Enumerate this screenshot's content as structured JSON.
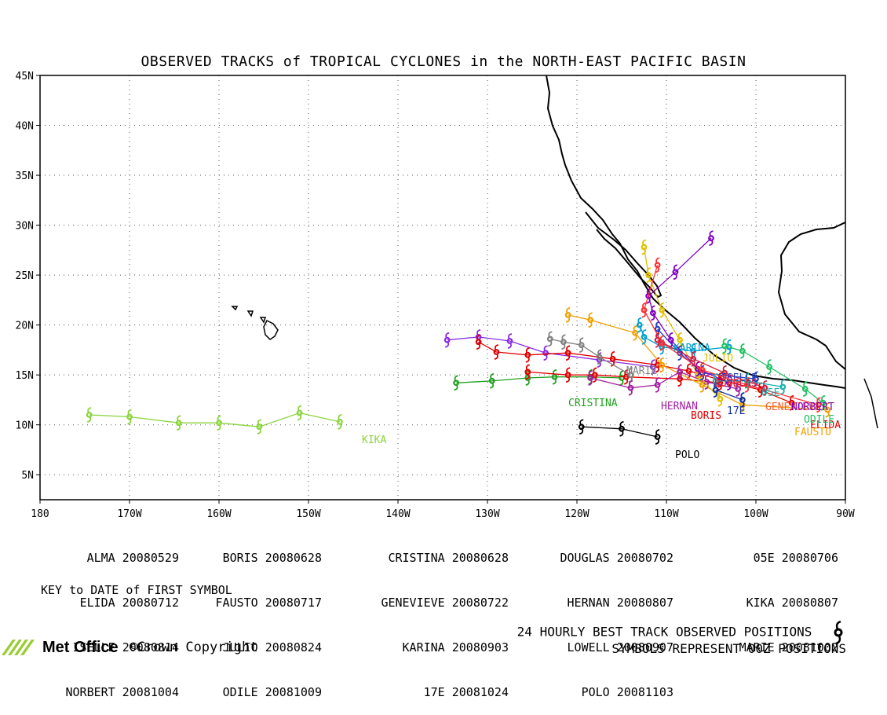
{
  "title": "OBSERVED TRACKS of TROPICAL CYCLONES in the NORTH-EAST PACIFIC BASIN",
  "axes": {
    "lon_ticks": [
      "180",
      "170W",
      "160W",
      "150W",
      "140W",
      "130W",
      "120W",
      "110W",
      "100W",
      "90W"
    ],
    "lat_ticks": [
      "5N",
      "10N",
      "15N",
      "20N",
      "25N",
      "30N",
      "35N",
      "40N",
      "45N"
    ]
  },
  "legend": {
    "col1": [
      [
        "ALMA",
        "20080529"
      ],
      [
        "ELIDA",
        "20080712"
      ],
      [
        "ISELLE",
        "20080814"
      ],
      [
        "NORBERT",
        "20081004"
      ]
    ],
    "col2": [
      [
        "BORIS",
        "20080628"
      ],
      [
        "FAUSTO",
        "20080717"
      ],
      [
        "JULIO",
        "20080824"
      ],
      [
        "ODILE",
        "20081009"
      ]
    ],
    "col3": [
      [
        "CRISTINA",
        "20080628"
      ],
      [
        "GENEVIEVE",
        "20080722"
      ],
      [
        "KARINA",
        "20080903"
      ],
      [
        "17E",
        "20081024"
      ]
    ],
    "col4": [
      [
        "DOUGLAS",
        "20080702"
      ],
      [
        "HERNAN",
        "20080807"
      ],
      [
        "LOWELL",
        "20080907"
      ],
      [
        "POLO",
        "20081103"
      ]
    ],
    "col5": [
      [
        "05E",
        "20080706"
      ],
      [
        "KIKA",
        "20080807"
      ],
      [
        "MARIE",
        "20081002"
      ]
    ]
  },
  "key_note": "KEY to DATE of FIRST SYMBOL",
  "footer": {
    "line1": "24 HOURLY BEST TRACK OBSERVED POSITIONS",
    "line2": "SYMBOLS REPRESENT 00Z POSITIONS",
    "brand": "Met Office",
    "copyright": "©Crown Copyright"
  },
  "chart_data": {
    "type": "map",
    "lon_range": [
      -180,
      -90
    ],
    "lat_range": [
      2.5,
      45
    ],
    "grid": "dotted",
    "storms": [
      {
        "name": "KIKA",
        "color": "#8ad43c",
        "points": [
          [
            -174.5,
            11
          ],
          [
            -170,
            10.8
          ],
          [
            -164.5,
            10.2
          ],
          [
            -160,
            10.2
          ],
          [
            -155.5,
            9.8
          ],
          [
            -151,
            11.2
          ],
          [
            -146.5,
            10.3
          ]
        ]
      },
      {
        "name": "POLO",
        "color": "#000000",
        "points": [
          [
            -119.5,
            9.8
          ],
          [
            -115,
            9.6
          ],
          [
            -111,
            8.8
          ]
        ]
      },
      {
        "name": "CRISTINA",
        "color": "#20a020",
        "points": [
          [
            -133.5,
            14.2
          ],
          [
            -129.5,
            14.4
          ],
          [
            -125.5,
            14.7
          ],
          [
            -122.5,
            14.8
          ],
          [
            -118.5,
            14.8
          ],
          [
            -115,
            14.7
          ]
        ]
      },
      {
        "name": "GENEVIEVE",
        "color": "#8a2be2",
        "points": [
          [
            -134.5,
            18.5
          ],
          [
            -131,
            18.8
          ],
          [
            -127.5,
            18.4
          ],
          [
            -123.5,
            17.2
          ],
          [
            -117.5,
            16.5
          ],
          [
            -111.5,
            15.8
          ]
        ]
      },
      {
        "name": "ELIDA",
        "color": "#e00000",
        "points": [
          [
            -96,
            12.2
          ],
          [
            -99.5,
            13.5
          ],
          [
            -104,
            14.5
          ],
          [
            -107.5,
            15.4
          ],
          [
            -111,
            16
          ],
          [
            -116,
            16.6
          ],
          [
            -121,
            17.2
          ],
          [
            -125.5,
            17
          ],
          [
            -129,
            17.3
          ],
          [
            -131,
            18.3
          ]
        ]
      },
      {
        "name": "BORIS",
        "color": "#e00000",
        "points": [
          [
            -104,
            14.2
          ],
          [
            -108.5,
            14.6
          ],
          [
            -114.5,
            14.8
          ],
          [
            -118,
            15
          ],
          [
            -121,
            15
          ],
          [
            -125.5,
            15.3
          ]
        ]
      },
      {
        "name": "FAUSTO",
        "color": "#f0a000",
        "points": [
          [
            -92,
            11.5
          ],
          [
            -101.5,
            12
          ],
          [
            -106,
            14
          ],
          [
            -110.5,
            16
          ],
          [
            -113.5,
            19.2
          ],
          [
            -118.5,
            20.5
          ],
          [
            -121,
            21
          ]
        ]
      },
      {
        "name": "MARIE",
        "color": "#808080",
        "points": [
          [
            -114,
            15
          ],
          [
            -117.5,
            16.8
          ],
          [
            -119.5,
            18
          ],
          [
            -121.5,
            18.3
          ],
          [
            -123,
            18.6
          ]
        ]
      },
      {
        "name": "HERNAN",
        "color": "#a020a0",
        "points": [
          [
            -102,
            13.6
          ],
          [
            -105.5,
            14.3
          ],
          [
            -108.5,
            15.3
          ],
          [
            -111,
            14
          ],
          [
            -114,
            13.7
          ],
          [
            -118.5,
            14.7
          ]
        ]
      },
      {
        "name": "JULIO",
        "color": "#e0c000",
        "points": [
          [
            -104,
            12.6
          ],
          [
            -106.5,
            15
          ],
          [
            -108.5,
            18.5
          ],
          [
            -110.5,
            21.5
          ],
          [
            -112,
            25
          ],
          [
            -112.5,
            27.8
          ]
        ]
      },
      {
        "name": "KARINA",
        "color": "#00a0d0",
        "points": [
          [
            -103,
            17.8
          ],
          [
            -107,
            17.4
          ],
          [
            -110.5,
            17.8
          ],
          [
            -112.5,
            18.8
          ],
          [
            -113,
            20
          ]
        ]
      },
      {
        "name": "ISELLE",
        "color": "#2040c0",
        "points": [
          [
            -100,
            14.6
          ],
          [
            -106,
            15.2
          ],
          [
            -108.5,
            17.2
          ],
          [
            -111,
            19.6
          ]
        ]
      },
      {
        "name": "NORBERT",
        "color": "#8000c0",
        "points": [
          [
            -103,
            14.2
          ],
          [
            -106.5,
            15.6
          ],
          [
            -109.5,
            18.5
          ],
          [
            -111.5,
            21.2
          ],
          [
            -112,
            22.9
          ],
          [
            -109,
            25.3
          ],
          [
            -105,
            28.7
          ]
        ]
      },
      {
        "name": "ODILE",
        "color": "#20c060",
        "points": [
          [
            -92.5,
            12.2
          ],
          [
            -94.5,
            13.6
          ],
          [
            -98.5,
            15.8
          ],
          [
            -101.5,
            17.4
          ],
          [
            -103.5,
            17.9
          ]
        ]
      },
      {
        "name": "LOWELL",
        "color": "#ff3030",
        "points": [
          [
            -93,
            12
          ],
          [
            -101,
            14
          ],
          [
            -106,
            15.5
          ],
          [
            -110.5,
            18.2
          ],
          [
            -112.5,
            21.5
          ],
          [
            -111,
            26
          ]
        ]
      },
      {
        "name": "DOUGLAS",
        "color": "#d02040",
        "points": [
          [
            -99,
            13.7
          ],
          [
            -103.5,
            15.2
          ],
          [
            -107,
            16.6
          ],
          [
            -111,
            18.5
          ]
        ]
      },
      {
        "name": "05E",
        "color": "#20b0b0",
        "points": [
          [
            -97,
            13.8
          ],
          [
            -101,
            14.4
          ],
          [
            -104.5,
            14.4
          ]
        ]
      },
      {
        "name": "17E",
        "color": "#1030a0",
        "points": [
          [
            -101.5,
            12.5
          ],
          [
            -104.5,
            13.5
          ]
        ]
      }
    ]
  }
}
